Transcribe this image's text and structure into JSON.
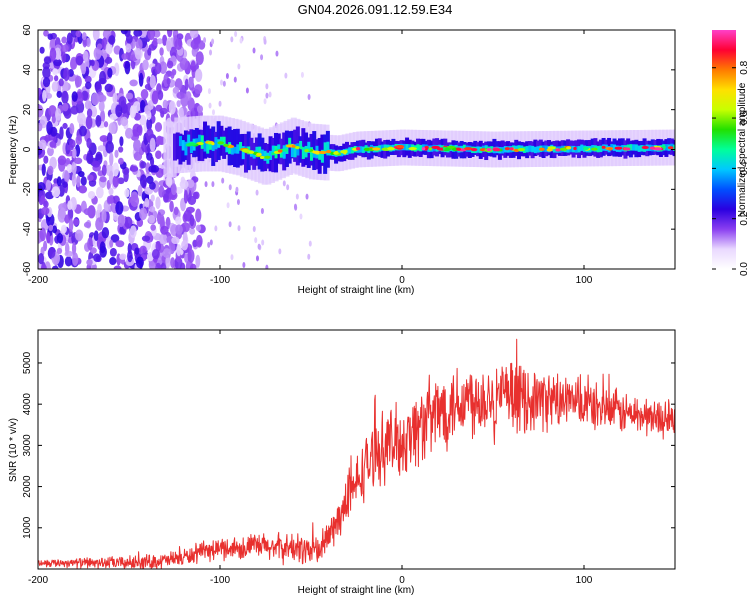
{
  "title": "GN04.2026.091.12.59.E34",
  "chart_data": [
    {
      "type": "heatmap",
      "name": "spectrogram",
      "xlabel": "Height of straight line (km)",
      "ylabel": "Frequency (Hz)",
      "xlim": [
        -200,
        150
      ],
      "ylim": [
        -60,
        60
      ],
      "xticks": [
        -200,
        -100,
        0,
        100
      ],
      "xtick_labels": [
        "-200",
        "-100",
        "0",
        "100"
      ],
      "yticks": [
        -60,
        -40,
        -20,
        0,
        20,
        40,
        60
      ],
      "ytick_labels": [
        "-60",
        "-40",
        "-20",
        "0",
        "20",
        "40",
        "60"
      ],
      "colorbar": {
        "label": "Normalized spectral amplitude",
        "range": [
          0,
          0.95
        ],
        "ticks": [
          0,
          0.2,
          0.4,
          0.6,
          0.8
        ],
        "tick_labels": [
          "0.0",
          "0.2",
          "0.4",
          "0.6",
          "0.8"
        ],
        "colormap": [
          "#ffffff",
          "#e9d8ff",
          "#8a3ff0",
          "#2a00e0",
          "#0050ff",
          "#00c8ff",
          "#00ff9a",
          "#22e000",
          "#c8ff00",
          "#ffe000",
          "#ff7a00",
          "#ff0033",
          "#ff40c8"
        ]
      },
      "ridge": {
        "description": "narrow high-amplitude band centred near 0 Hz",
        "points": [
          [
            -125,
            2
          ],
          [
            -110,
            3
          ],
          [
            -100,
            3
          ],
          [
            -90,
            1
          ],
          [
            -75,
            -4
          ],
          [
            -60,
            2
          ],
          [
            -50,
            -1
          ],
          [
            -35,
            -2
          ],
          [
            -25,
            0
          ],
          [
            0,
            1
          ],
          [
            50,
            0
          ],
          [
            100,
            0.5
          ],
          [
            150,
            1
          ]
        ]
      },
      "noise_region_km": [
        -200,
        -120
      ]
    },
    {
      "type": "line",
      "name": "snr",
      "xlabel": "Height of straight line (km)",
      "ylabel": "SNR (10 * v/v)",
      "xlim": [
        -200,
        150
      ],
      "ylim": [
        0,
        5800
      ],
      "xticks": [
        -200,
        -100,
        0,
        100
      ],
      "xtick_labels": [
        "-200",
        "-100",
        "0",
        "100"
      ],
      "yticks": [
        1000,
        2000,
        3000,
        4000,
        5000
      ],
      "ytick_labels": [
        "1000",
        "2000",
        "3000",
        "4000",
        "5000"
      ],
      "color": "#e8302e",
      "trend": {
        "x": [
          -200,
          -150,
          -130,
          -120,
          -110,
          -100,
          -80,
          -60,
          -45,
          -35,
          -28,
          -20,
          -10,
          0,
          10,
          20,
          30,
          50,
          80,
          100,
          120,
          150
        ],
        "y": [
          150,
          150,
          200,
          280,
          400,
          500,
          550,
          500,
          450,
          1200,
          1800,
          2500,
          3000,
          3100,
          3500,
          3800,
          4100,
          4200,
          4100,
          4000,
          3800,
          3600
        ]
      },
      "noise_amplitude": {
        "x": [
          -200,
          -120,
          -40,
          -20,
          0,
          20,
          60,
          100,
          150
        ],
        "y": [
          100,
          250,
          500,
          900,
          1100,
          1200,
          1000,
          700,
          500
        ]
      }
    }
  ]
}
